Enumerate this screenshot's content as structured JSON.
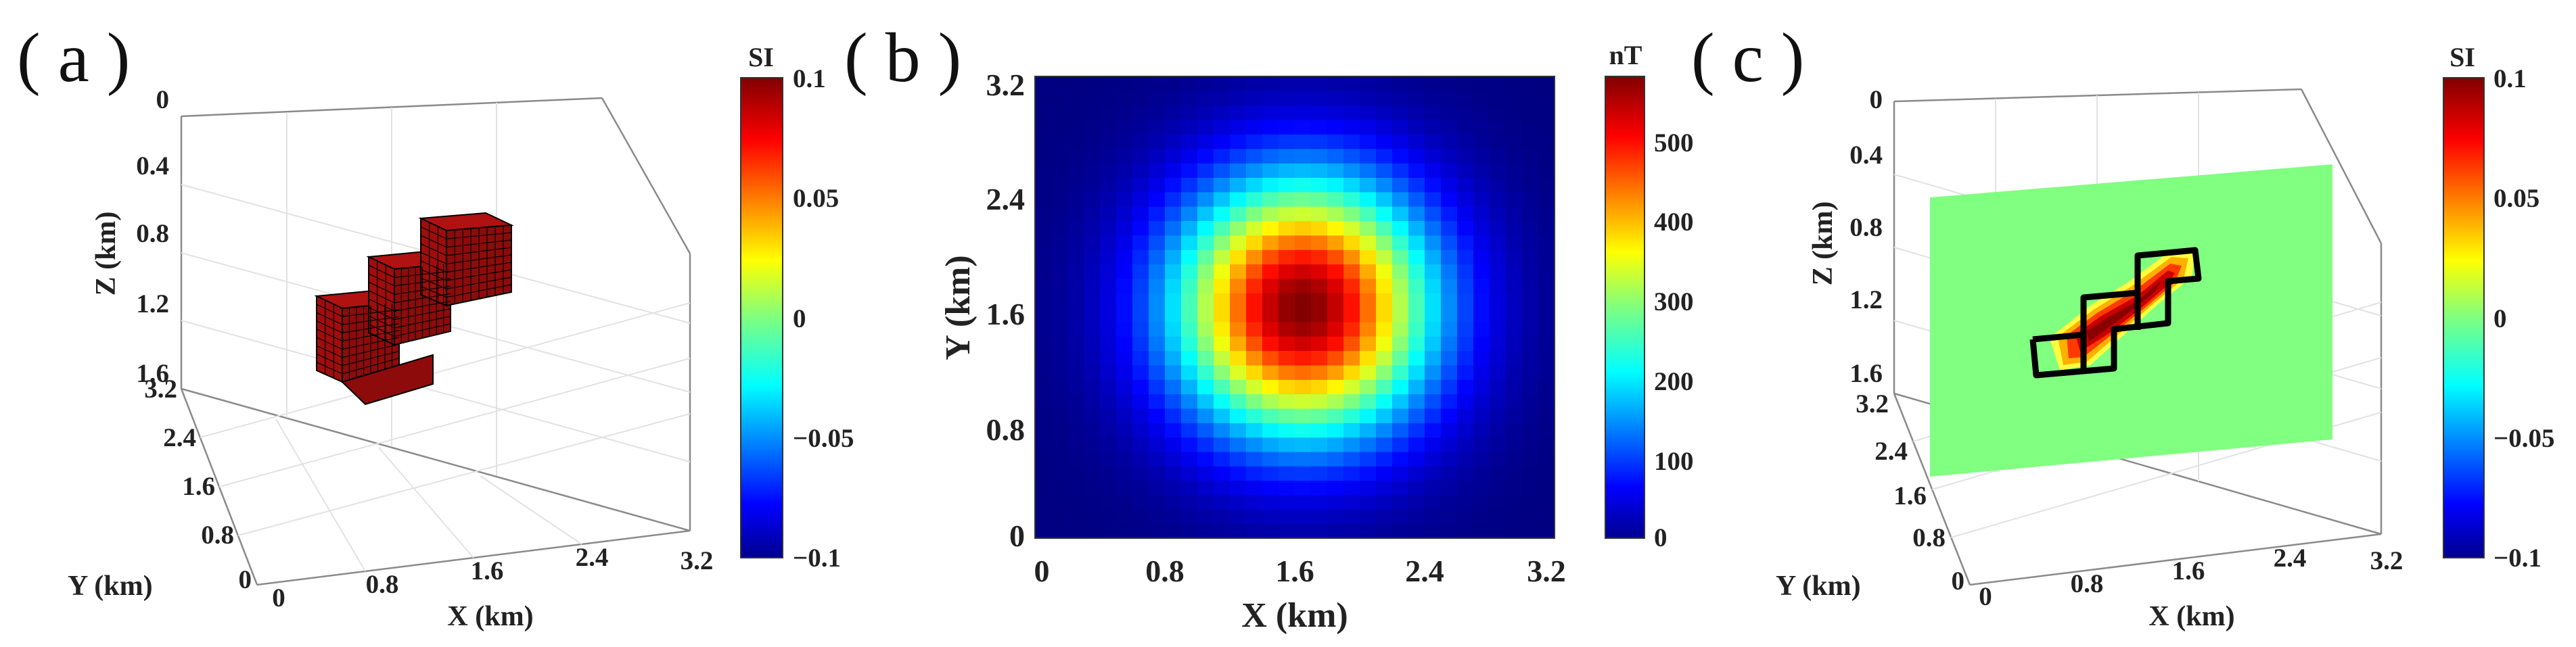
{
  "chart_data": [
    {
      "panel": "( a )",
      "type": "3d-voxel",
      "xlabel": "X (km)",
      "ylabel": "Y (km)",
      "zlabel": "Z (km)",
      "x_ticks": [
        "0",
        "0.8",
        "1.6",
        "2.4",
        "3.2"
      ],
      "y_ticks": [
        "0",
        "0.8",
        "1.6",
        "2.4",
        "3.2"
      ],
      "z_ticks": [
        "0",
        "0.4",
        "0.8",
        "1.2",
        "1.6"
      ],
      "z_reversed": true,
      "colorbar": {
        "title": "SI",
        "ticks": [
          "0.1",
          "0.05",
          "0",
          "−0.05",
          "−0.1"
        ],
        "range": [
          -0.1,
          0.1
        ],
        "colormap": "jet"
      },
      "body_susceptibility": 0.1,
      "body_color": "#a50f0f",
      "body_blocks": [
        {
          "x": [
            0.8,
            1.2
          ],
          "y": [
            1.2,
            2.0
          ],
          "z": [
            1.0,
            1.4
          ]
        },
        {
          "x": [
            1.2,
            1.6
          ],
          "y": [
            1.2,
            2.0
          ],
          "z": [
            0.8,
            1.2
          ]
        },
        {
          "x": [
            1.6,
            2.0
          ],
          "y": [
            1.2,
            2.0
          ],
          "z": [
            0.6,
            1.0
          ]
        }
      ]
    },
    {
      "panel": "( b )",
      "type": "heatmap",
      "xlabel": "X (km)",
      "ylabel": "Y (km)",
      "x_ticks": [
        "0",
        "0.8",
        "1.6",
        "2.4",
        "3.2"
      ],
      "y_ticks": [
        "0",
        "0.8",
        "1.6",
        "2.4",
        "3.2"
      ],
      "xlim": [
        0,
        3.2
      ],
      "ylim": [
        0,
        3.2
      ],
      "grid_size": [
        32,
        32
      ],
      "colorbar": {
        "title": "nT",
        "ticks": [
          "500",
          "400",
          "300",
          "200",
          "100",
          "0"
        ],
        "range": [
          0,
          580
        ],
        "colormap": "jet"
      },
      "anomaly": {
        "peak_nT": 580,
        "center_x_km": 1.65,
        "center_y_km": 1.6,
        "width_x_km": 0.55,
        "width_y_km": 0.62
      }
    },
    {
      "panel": "( c )",
      "type": "3d-slice",
      "xlabel": "X (km)",
      "ylabel": "Y (km)",
      "zlabel": "Z (km)",
      "x_ticks": [
        "0",
        "0.8",
        "1.6",
        "2.4",
        "3.2"
      ],
      "y_ticks": [
        "0",
        "0.8",
        "1.6",
        "2.4",
        "3.2"
      ],
      "z_ticks": [
        "0",
        "0.4",
        "0.8",
        "1.2",
        "1.6"
      ],
      "z_reversed": true,
      "slice_y_km": 1.6,
      "colorbar": {
        "title": "SI",
        "ticks": [
          "0.1",
          "0.05",
          "0",
          "−0.05",
          "−0.1"
        ],
        "range": [
          -0.1,
          0.1
        ],
        "colormap": "jet"
      },
      "background_value": 0.0,
      "recovered_peak": 0.1,
      "outline_color": "#000000"
    }
  ]
}
